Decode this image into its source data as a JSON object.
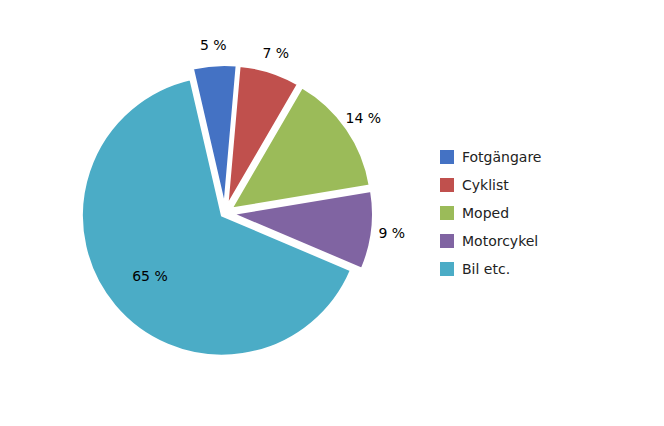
{
  "chart_data": {
    "type": "pie",
    "categories": [
      "Fotgängare",
      "Cyklist",
      "Moped",
      "Motorcykel",
      "Bil etc."
    ],
    "values": [
      5,
      7,
      14,
      9,
      65
    ],
    "value_labels": [
      "5 %",
      "7 %",
      "14 %",
      "9 %",
      "65 %"
    ],
    "colors": [
      "#4472C4",
      "#C0504D",
      "#9BBB59",
      "#8064A2",
      "#4BACC6"
    ],
    "data_labels": true,
    "legend": "right"
  }
}
